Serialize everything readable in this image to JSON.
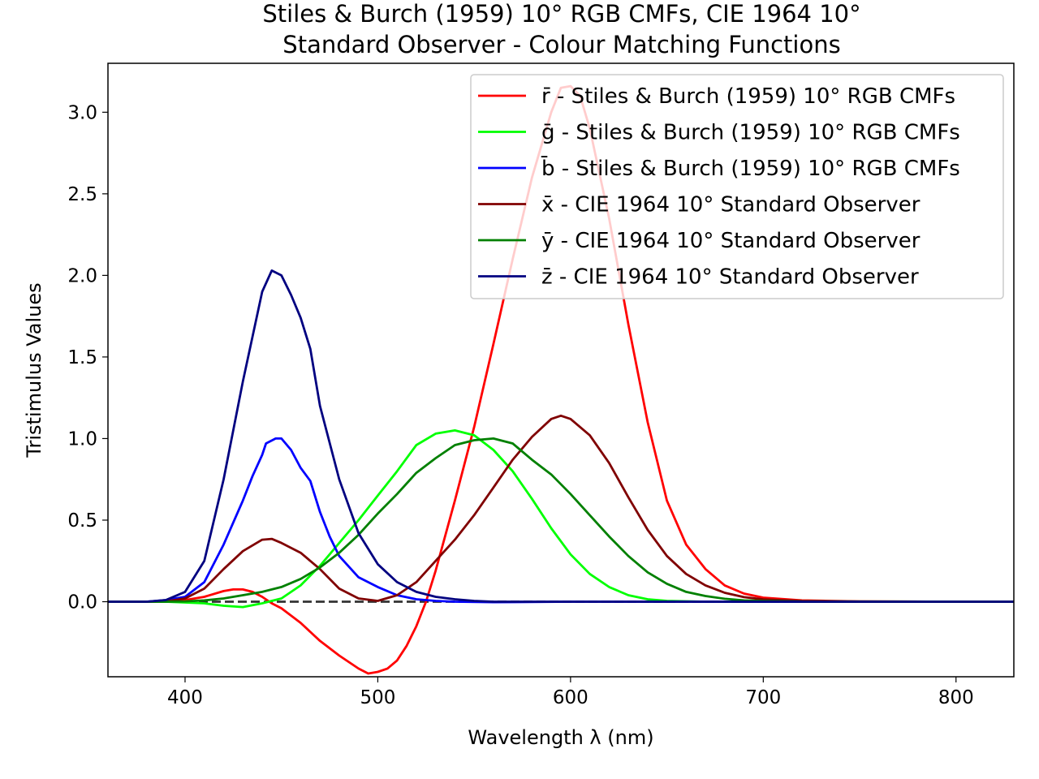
{
  "chart_data": {
    "type": "line",
    "title_line1": "Stiles & Burch (1959) 10° RGB CMFs, CIE 1964 10°",
    "title_line2": "Standard Observer - Colour Matching Functions",
    "xlabel": "Wavelength λ (nm)",
    "ylabel": "Tristimulus Values",
    "xlim": [
      360,
      830
    ],
    "ylim": [
      -0.46,
      3.3
    ],
    "xticks": [
      400,
      500,
      600,
      700,
      800
    ],
    "yticks": [
      0.0,
      0.5,
      1.0,
      1.5,
      2.0,
      2.5,
      3.0
    ],
    "xtick_labels": [
      "400",
      "500",
      "600",
      "700",
      "800"
    ],
    "ytick_labels": [
      "0.0",
      "0.5",
      "1.0",
      "1.5",
      "2.0",
      "2.5",
      "3.0"
    ],
    "grid": false,
    "legend_position": "top-right",
    "baseline": {
      "y": 0.0,
      "style": "dashed",
      "color": "#333333"
    },
    "series": [
      {
        "name": "r̄ - Stiles & Burch (1959) 10° RGB CMFs",
        "color": "#ff0000",
        "points": [
          [
            360,
            0
          ],
          [
            380,
            0.0
          ],
          [
            390,
            0.002
          ],
          [
            400,
            0.01
          ],
          [
            410,
            0.03
          ],
          [
            420,
            0.065
          ],
          [
            425,
            0.075
          ],
          [
            430,
            0.075
          ],
          [
            435,
            0.06
          ],
          [
            440,
            0.03
          ],
          [
            445,
            -0.01
          ],
          [
            450,
            -0.04
          ],
          [
            460,
            -0.13
          ],
          [
            470,
            -0.24
          ],
          [
            480,
            -0.33
          ],
          [
            490,
            -0.41
          ],
          [
            495,
            -0.44
          ],
          [
            500,
            -0.43
          ],
          [
            505,
            -0.41
          ],
          [
            510,
            -0.36
          ],
          [
            515,
            -0.27
          ],
          [
            520,
            -0.15
          ],
          [
            525,
            0.0
          ],
          [
            530,
            0.19
          ],
          [
            540,
            0.62
          ],
          [
            550,
            1.07
          ],
          [
            560,
            1.58
          ],
          [
            570,
            2.1
          ],
          [
            580,
            2.6
          ],
          [
            590,
            3.0
          ],
          [
            595,
            3.15
          ],
          [
            600,
            3.16
          ],
          [
            605,
            3.1
          ],
          [
            610,
            2.9
          ],
          [
            620,
            2.35
          ],
          [
            630,
            1.7
          ],
          [
            640,
            1.1
          ],
          [
            650,
            0.62
          ],
          [
            660,
            0.35
          ],
          [
            670,
            0.2
          ],
          [
            680,
            0.1
          ],
          [
            690,
            0.05
          ],
          [
            700,
            0.025
          ],
          [
            720,
            0.008
          ],
          [
            750,
            0.002
          ],
          [
            800,
            0.0
          ],
          [
            830,
            0.0
          ]
        ]
      },
      {
        "name": "ḡ - Stiles & Burch (1959) 10° RGB CMFs",
        "color": "#00ff00",
        "points": [
          [
            360,
            0
          ],
          [
            380,
            0.0
          ],
          [
            390,
            0.0
          ],
          [
            400,
            -0.005
          ],
          [
            410,
            -0.01
          ],
          [
            420,
            -0.025
          ],
          [
            430,
            -0.033
          ],
          [
            440,
            -0.01
          ],
          [
            450,
            0.02
          ],
          [
            460,
            0.1
          ],
          [
            470,
            0.22
          ],
          [
            480,
            0.36
          ],
          [
            490,
            0.5
          ],
          [
            500,
            0.65
          ],
          [
            510,
            0.8
          ],
          [
            520,
            0.96
          ],
          [
            530,
            1.03
          ],
          [
            540,
            1.05
          ],
          [
            550,
            1.02
          ],
          [
            560,
            0.93
          ],
          [
            570,
            0.8
          ],
          [
            580,
            0.63
          ],
          [
            590,
            0.45
          ],
          [
            600,
            0.29
          ],
          [
            610,
            0.17
          ],
          [
            620,
            0.09
          ],
          [
            630,
            0.04
          ],
          [
            640,
            0.015
          ],
          [
            650,
            0.005
          ],
          [
            670,
            0.0
          ],
          [
            700,
            0.0
          ],
          [
            830,
            0.0
          ]
        ]
      },
      {
        "name": "b̄ - Stiles & Burch (1959) 10° RGB CMFs",
        "color": "#0000ff",
        "points": [
          [
            360,
            0
          ],
          [
            380,
            0.0
          ],
          [
            390,
            0.01
          ],
          [
            400,
            0.03
          ],
          [
            410,
            0.12
          ],
          [
            420,
            0.35
          ],
          [
            430,
            0.62
          ],
          [
            435,
            0.77
          ],
          [
            440,
            0.9
          ],
          [
            442,
            0.97
          ],
          [
            447,
            1.0
          ],
          [
            450,
            1.0
          ],
          [
            455,
            0.93
          ],
          [
            460,
            0.82
          ],
          [
            465,
            0.74
          ],
          [
            470,
            0.55
          ],
          [
            475,
            0.4
          ],
          [
            480,
            0.28
          ],
          [
            490,
            0.15
          ],
          [
            500,
            0.09
          ],
          [
            510,
            0.04
          ],
          [
            520,
            0.015
          ],
          [
            530,
            0.005
          ],
          [
            540,
            0.0
          ],
          [
            560,
            -0.003
          ],
          [
            600,
            0.0
          ],
          [
            830,
            0.0
          ]
        ]
      },
      {
        "name": "x̄ - CIE 1964 10° Standard Observer",
        "color": "#800000",
        "points": [
          [
            360,
            0
          ],
          [
            380,
            0.0
          ],
          [
            390,
            0.002
          ],
          [
            400,
            0.02
          ],
          [
            410,
            0.08
          ],
          [
            420,
            0.2
          ],
          [
            430,
            0.31
          ],
          [
            440,
            0.38
          ],
          [
            445,
            0.385
          ],
          [
            450,
            0.36
          ],
          [
            460,
            0.3
          ],
          [
            470,
            0.2
          ],
          [
            480,
            0.08
          ],
          [
            490,
            0.02
          ],
          [
            500,
            0.005
          ],
          [
            510,
            0.04
          ],
          [
            520,
            0.12
          ],
          [
            530,
            0.25
          ],
          [
            540,
            0.38
          ],
          [
            550,
            0.53
          ],
          [
            560,
            0.7
          ],
          [
            570,
            0.87
          ],
          [
            580,
            1.01
          ],
          [
            590,
            1.12
          ],
          [
            595,
            1.14
          ],
          [
            600,
            1.12
          ],
          [
            610,
            1.02
          ],
          [
            620,
            0.85
          ],
          [
            630,
            0.64
          ],
          [
            640,
            0.44
          ],
          [
            650,
            0.28
          ],
          [
            660,
            0.17
          ],
          [
            670,
            0.1
          ],
          [
            680,
            0.055
          ],
          [
            690,
            0.028
          ],
          [
            700,
            0.014
          ],
          [
            720,
            0.004
          ],
          [
            750,
            0.001
          ],
          [
            830,
            0.0
          ]
        ]
      },
      {
        "name": "ȳ - CIE 1964 10° Standard Observer",
        "color": "#008000",
        "points": [
          [
            360,
            0
          ],
          [
            380,
            0.0
          ],
          [
            390,
            0.0
          ],
          [
            400,
            0.002
          ],
          [
            410,
            0.008
          ],
          [
            420,
            0.02
          ],
          [
            430,
            0.04
          ],
          [
            440,
            0.06
          ],
          [
            450,
            0.09
          ],
          [
            460,
            0.14
          ],
          [
            470,
            0.21
          ],
          [
            480,
            0.3
          ],
          [
            490,
            0.41
          ],
          [
            500,
            0.54
          ],
          [
            510,
            0.66
          ],
          [
            520,
            0.79
          ],
          [
            530,
            0.88
          ],
          [
            540,
            0.96
          ],
          [
            550,
            0.99
          ],
          [
            560,
            1.0
          ],
          [
            570,
            0.97
          ],
          [
            580,
            0.87
          ],
          [
            590,
            0.78
          ],
          [
            600,
            0.66
          ],
          [
            610,
            0.53
          ],
          [
            620,
            0.4
          ],
          [
            630,
            0.28
          ],
          [
            640,
            0.18
          ],
          [
            650,
            0.11
          ],
          [
            660,
            0.06
          ],
          [
            670,
            0.035
          ],
          [
            680,
            0.018
          ],
          [
            690,
            0.008
          ],
          [
            700,
            0.004
          ],
          [
            720,
            0.001
          ],
          [
            830,
            0.0
          ]
        ]
      },
      {
        "name": "z̄ - CIE 1964 10° Standard Observer",
        "color": "#000080",
        "points": [
          [
            360,
            0
          ],
          [
            380,
            0.0
          ],
          [
            390,
            0.01
          ],
          [
            400,
            0.06
          ],
          [
            410,
            0.25
          ],
          [
            420,
            0.75
          ],
          [
            430,
            1.35
          ],
          [
            440,
            1.9
          ],
          [
            445,
            2.03
          ],
          [
            450,
            2.0
          ],
          [
            455,
            1.88
          ],
          [
            460,
            1.74
          ],
          [
            465,
            1.55
          ],
          [
            470,
            1.2
          ],
          [
            480,
            0.75
          ],
          [
            490,
            0.42
          ],
          [
            500,
            0.23
          ],
          [
            510,
            0.12
          ],
          [
            520,
            0.06
          ],
          [
            530,
            0.03
          ],
          [
            540,
            0.015
          ],
          [
            550,
            0.005
          ],
          [
            560,
            0.0
          ],
          [
            600,
            0.0
          ],
          [
            830,
            0.0
          ]
        ]
      }
    ]
  }
}
